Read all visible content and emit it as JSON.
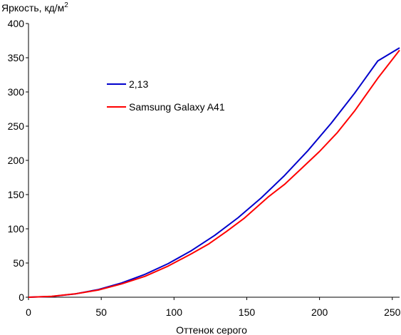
{
  "chart_data": {
    "type": "line",
    "ylabel": "Яркость, кд/м",
    "ylabel_superscript": "2",
    "xlabel": "Оттенок серого",
    "xlim": [
      0,
      255
    ],
    "ylim": [
      0,
      400
    ],
    "x_ticks": [
      0,
      50,
      100,
      150,
      200,
      250
    ],
    "y_ticks": [
      0,
      50,
      100,
      150,
      200,
      250,
      300,
      350,
      400
    ],
    "grid": false,
    "legend_position": "upper-left",
    "series": [
      {
        "name": "2,13",
        "color": "#0000cc",
        "x": [
          0,
          16,
          32,
          48,
          64,
          80,
          96,
          112,
          128,
          144,
          160,
          176,
          192,
          208,
          224,
          240,
          255
        ],
        "y": [
          0,
          1.1,
          4.8,
          11.3,
          20.8,
          33.4,
          49.1,
          68.1,
          90.4,
          116.1,
          145.3,
          178,
          214.3,
          254.3,
          297.9,
          345.3,
          364.5
        ]
      },
      {
        "name": "Samsung Galaxy A41",
        "color": "#ff0000",
        "x": [
          0,
          16,
          32,
          48,
          64,
          80,
          96,
          112,
          124,
          136,
          148,
          165,
          176,
          188,
          200,
          212,
          224,
          240,
          255
        ],
        "y": [
          0,
          1.2,
          4.9,
          10.5,
          19.5,
          30.5,
          45.5,
          63.5,
          78,
          96,
          115,
          147,
          165,
          189,
          213,
          240,
          272,
          320,
          361
        ]
      }
    ]
  }
}
